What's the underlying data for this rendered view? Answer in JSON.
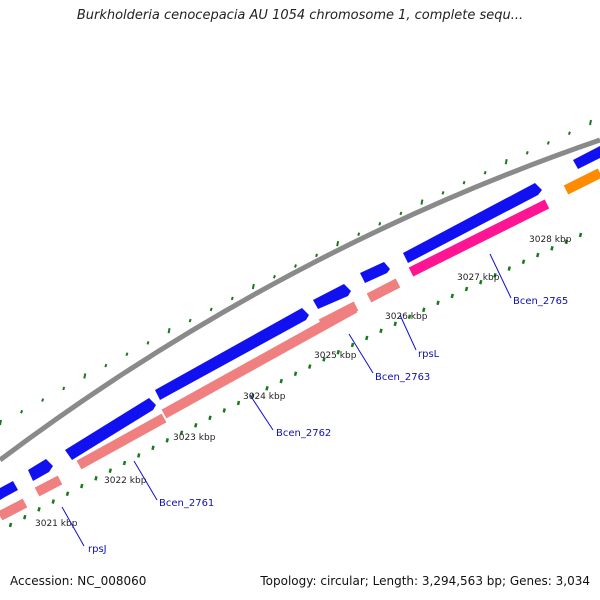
{
  "map": {
    "title": "Burkholderia cenocepacia AU 1054 chromosome 1, complete sequ...",
    "accession": "Accession: NC_008060",
    "summary": "Topology: circular; Length: 3,294,563 bp; Genes: 3,034",
    "tick_labels": [
      "3021 kbp",
      "3022 kbp",
      "3023 kbp",
      "3024 kbp",
      "3025 kbp",
      "3026 kbp",
      "3027 kbp",
      "3028 kbp"
    ],
    "gene_labels": [
      "rpsJ",
      "Bcen_2761",
      "Bcen_2762",
      "Bcen_2763",
      "rpsL",
      "Bcen_2765"
    ]
  },
  "colors": {
    "backbone": "#8a8a8a",
    "forward_gene": "#1010f0",
    "rrna_feature": "#f08080",
    "trna_feature": "#ff1493",
    "other_feature": "#ff8c00",
    "gc_skew": "#1a7a1a",
    "gene_label": "#1010b0"
  }
}
